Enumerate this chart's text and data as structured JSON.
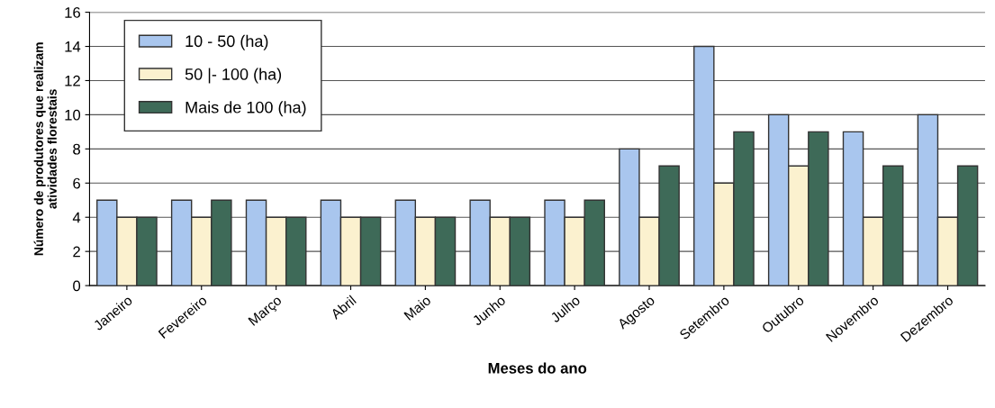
{
  "chart_data": {
    "type": "bar",
    "xlabel": "Meses do ano",
    "ylabel": "Número de produtores que realizam\natividades florestais",
    "categories": [
      "Janeiro",
      "Fevereiro",
      "Março",
      "Abril",
      "Maio",
      "Junho",
      "Julho",
      "Agosto",
      "Setembro",
      "Outubro",
      "Novembro",
      "Dezembro"
    ],
    "series": [
      {
        "name": "10 - 50 (ha)",
        "color": "#a9c6ee",
        "values": [
          5,
          5,
          5,
          5,
          5,
          5,
          5,
          8,
          14,
          10,
          9,
          10
        ]
      },
      {
        "name": "50 |- 100 (ha)",
        "color": "#fbf1cf",
        "values": [
          4,
          4,
          4,
          4,
          4,
          4,
          4,
          4,
          6,
          7,
          4,
          4
        ]
      },
      {
        "name": "Mais de 100 (ha)",
        "color": "#3e6a58",
        "values": [
          4,
          5,
          4,
          4,
          4,
          4,
          5,
          7,
          9,
          9,
          7,
          7
        ]
      }
    ],
    "ylim": [
      0,
      16
    ],
    "yticks": [
      0,
      2,
      4,
      6,
      8,
      10,
      12,
      14,
      16
    ],
    "grid": "y",
    "legend": "top left"
  }
}
